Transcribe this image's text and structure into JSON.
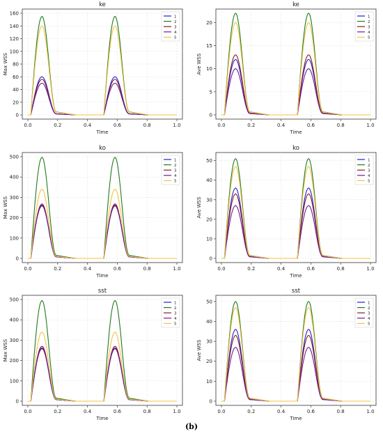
{
  "caption": "(b)",
  "palette": {
    "1": "#1f1fd6",
    "2": "#1f7a1f",
    "3": "#8b1a1a",
    "4": "#6a1b9a",
    "5": "#f5c242"
  },
  "chart_data": [
    {
      "type": "line",
      "title": "ke",
      "xlabel": "Time",
      "ylabel": "Max WSS",
      "xlim": [
        0,
        1.0
      ],
      "ylim": [
        0,
        160
      ],
      "xticks": [
        "0.0",
        "0.2",
        "0.4",
        "0.6",
        "0.8",
        "1.0"
      ],
      "yticks": [
        "0",
        "20",
        "40",
        "60",
        "80",
        "100",
        "120",
        "140",
        "160"
      ],
      "grid": true,
      "legend_position": "top-right",
      "series": [
        {
          "name": "1",
          "peak": 60
        },
        {
          "name": "2",
          "peak": 155
        },
        {
          "name": "3",
          "peak": 56
        },
        {
          "name": "4",
          "peak": 50
        },
        {
          "name": "5",
          "peak": 140
        }
      ]
    },
    {
      "type": "line",
      "title": "ke",
      "xlabel": "Time",
      "ylabel": "Ave WSS",
      "xlim": [
        0,
        1.0
      ],
      "ylim": [
        0,
        22
      ],
      "xticks": [
        "0.0",
        "0.2",
        "0.4",
        "0.6",
        "0.8",
        "1.0"
      ],
      "yticks": [
        "0",
        "5",
        "10",
        "15",
        "20"
      ],
      "grid": true,
      "legend_position": "top-right",
      "series": [
        {
          "name": "1",
          "peak": 12
        },
        {
          "name": "2",
          "peak": 22
        },
        {
          "name": "3",
          "peak": 13
        },
        {
          "name": "4",
          "peak": 10
        },
        {
          "name": "5",
          "peak": 20
        }
      ]
    },
    {
      "type": "line",
      "title": "ko",
      "xlabel": "Time",
      "ylabel": "Max WSS",
      "xlim": [
        0,
        1.0
      ],
      "ylim": [
        0,
        500
      ],
      "xticks": [
        "0.0",
        "0.2",
        "0.4",
        "0.6",
        "0.8",
        "1.0"
      ],
      "yticks": [
        "0",
        "100",
        "200",
        "300",
        "400",
        "500"
      ],
      "grid": true,
      "legend_position": "top-right",
      "series": [
        {
          "name": "1",
          "peak": 262
        },
        {
          "name": "2",
          "peak": 497
        },
        {
          "name": "3",
          "peak": 268
        },
        {
          "name": "4",
          "peak": 258
        },
        {
          "name": "5",
          "peak": 340
        }
      ]
    },
    {
      "type": "line",
      "title": "ko",
      "xlabel": "Time",
      "ylabel": "Ave WSS",
      "xlim": [
        0,
        1.0
      ],
      "ylim": [
        0,
        52
      ],
      "xticks": [
        "0.0",
        "0.2",
        "0.4",
        "0.6",
        "0.8",
        "1.0"
      ],
      "yticks": [
        "0",
        "10",
        "20",
        "30",
        "40",
        "50"
      ],
      "grid": true,
      "legend_position": "top-right",
      "series": [
        {
          "name": "1",
          "peak": 36
        },
        {
          "name": "2",
          "peak": 51
        },
        {
          "name": "3",
          "peak": 33
        },
        {
          "name": "4",
          "peak": 27
        },
        {
          "name": "5",
          "peak": 47
        }
      ]
    },
    {
      "type": "line",
      "title": "sst",
      "xlabel": "Time",
      "ylabel": "Max WSS",
      "xlim": [
        0,
        1.0
      ],
      "ylim": [
        0,
        500
      ],
      "xticks": [
        "0.0",
        "0.2",
        "0.4",
        "0.6",
        "0.8",
        "1.0"
      ],
      "yticks": [
        "0",
        "100",
        "200",
        "300",
        "400",
        "500"
      ],
      "grid": true,
      "legend_position": "top-right",
      "series": [
        {
          "name": "1",
          "peak": 262
        },
        {
          "name": "2",
          "peak": 495
        },
        {
          "name": "3",
          "peak": 270
        },
        {
          "name": "4",
          "peak": 258
        },
        {
          "name": "5",
          "peak": 340
        }
      ]
    },
    {
      "type": "line",
      "title": "sst",
      "xlabel": "Time",
      "ylabel": "Ave WSS",
      "xlim": [
        0,
        1.0
      ],
      "ylim": [
        0,
        51
      ],
      "xticks": [
        "0.0",
        "0.2",
        "0.4",
        "0.6",
        "0.8",
        "1.0"
      ],
      "yticks": [
        "0",
        "10",
        "20",
        "30",
        "40",
        "50"
      ],
      "grid": true,
      "legend_position": "top-right",
      "series": [
        {
          "name": "1",
          "peak": 36
        },
        {
          "name": "2",
          "peak": 50
        },
        {
          "name": "3",
          "peak": 33
        },
        {
          "name": "4",
          "peak": 27
        },
        {
          "name": "5",
          "peak": 47
        }
      ]
    }
  ]
}
